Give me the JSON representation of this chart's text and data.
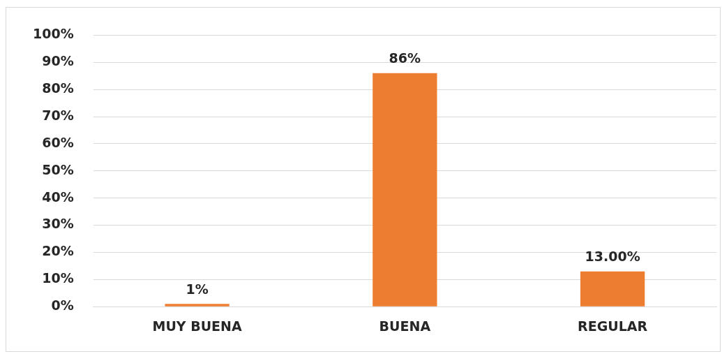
{
  "chart_data": {
    "type": "bar",
    "categories": [
      "MUY BUENA",
      "BUENA",
      "REGULAR"
    ],
    "values": [
      1,
      86,
      13
    ],
    "value_labels": [
      "1%",
      "86%",
      "13.00%"
    ],
    "color": "#ed7d31",
    "ylim": [
      0,
      100
    ],
    "yticks": [
      {
        "value": 0,
        "label": "0%"
      },
      {
        "value": 10,
        "label": "10%"
      },
      {
        "value": 20,
        "label": "20%"
      },
      {
        "value": 30,
        "label": "30%"
      },
      {
        "value": 40,
        "label": "40%"
      },
      {
        "value": 50,
        "label": "50%"
      },
      {
        "value": 60,
        "label": "60%"
      },
      {
        "value": 70,
        "label": "70%"
      },
      {
        "value": 80,
        "label": "80%"
      },
      {
        "value": 90,
        "label": "90%"
      },
      {
        "value": 100,
        "label": "100%"
      }
    ],
    "grid": "y",
    "legend": false
  }
}
